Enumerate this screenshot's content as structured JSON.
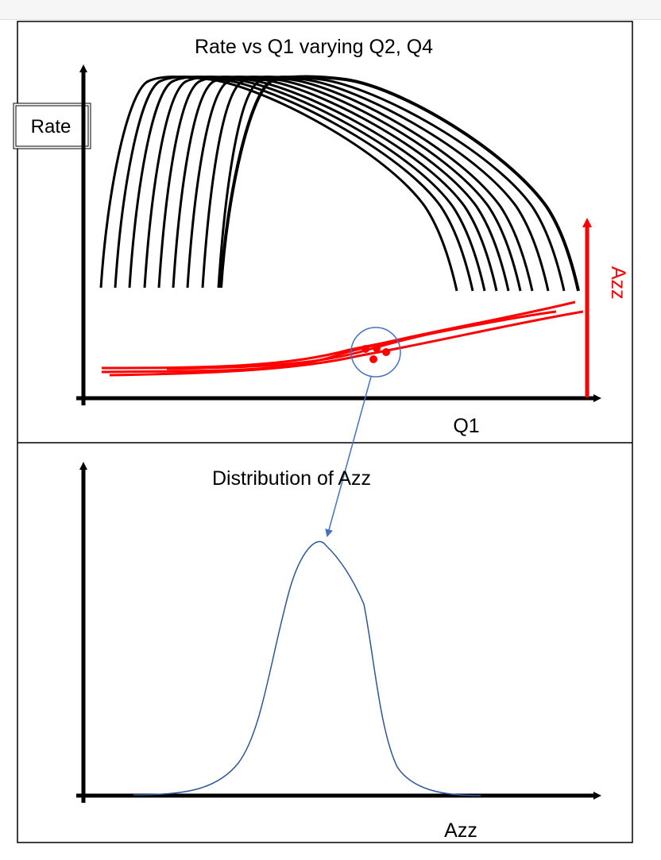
{
  "top_panel": {
    "title": "Rate vs Q1 varying Q2, Q4",
    "y_axis_label": "Rate",
    "x_axis_label": "Q1",
    "right_axis_label": "Azz",
    "colors": {
      "rate_curves": "#000000",
      "azz_curves": "#ff0000",
      "callout": "#4472c4"
    }
  },
  "bottom_panel": {
    "title": "Distribution of Azz",
    "x_axis_label": "Azz",
    "colors": {
      "distribution_curve": "#2f5597"
    }
  }
}
